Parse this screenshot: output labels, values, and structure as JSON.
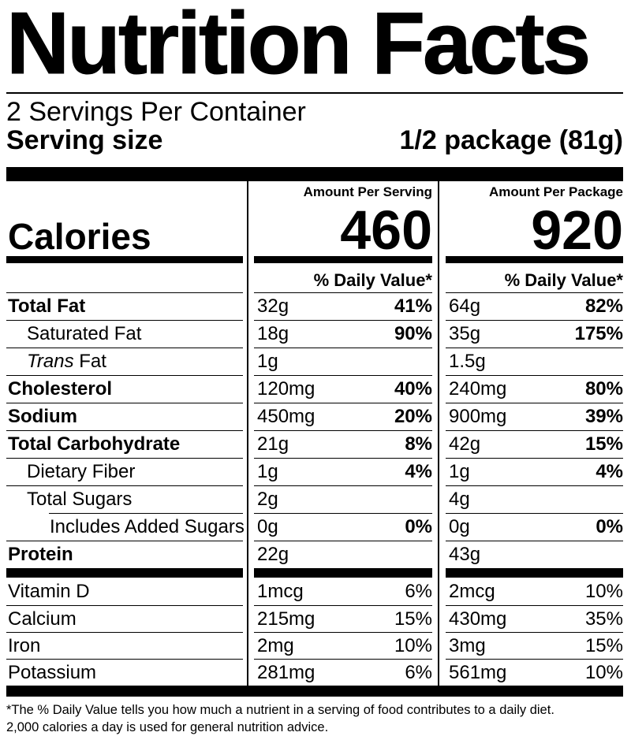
{
  "label": {
    "title": "Nutrition Facts",
    "servings_per_container": "2 Servings Per Container",
    "serving_size_label": "Serving size",
    "serving_size_value": "1/2 package (81g)",
    "columns": {
      "serving_header": "Amount Per Serving",
      "package_header": "Amount Per Package",
      "calories_label": "Calories",
      "serving_calories": "460",
      "package_calories": "920",
      "daily_value_header": "% Daily Value*"
    },
    "nutrients": [
      {
        "name": "Total Fat",
        "bold": true,
        "indent": 0,
        "serving_amount": "32g",
        "serving_dv": "41%",
        "package_amount": "64g",
        "package_dv": "82%",
        "dv_bold": true
      },
      {
        "name": "Saturated Fat",
        "bold": false,
        "indent": 1,
        "serving_amount": "18g",
        "serving_dv": "90%",
        "package_amount": "35g",
        "package_dv": "175%",
        "dv_bold": true
      },
      {
        "name_italic": "Trans",
        "name": " Fat",
        "bold": false,
        "indent": 1,
        "serving_amount": "1g",
        "serving_dv": "",
        "package_amount": "1.5g",
        "package_dv": "",
        "dv_bold": false
      },
      {
        "name": "Cholesterol",
        "bold": true,
        "indent": 0,
        "serving_amount": "120mg",
        "serving_dv": "40%",
        "package_amount": "240mg",
        "package_dv": "80%",
        "dv_bold": true
      },
      {
        "name": "Sodium",
        "bold": true,
        "indent": 0,
        "serving_amount": "450mg",
        "serving_dv": "20%",
        "package_amount": "900mg",
        "package_dv": "39%",
        "dv_bold": true
      },
      {
        "name": "Total Carbohydrate",
        "bold": true,
        "indent": 0,
        "serving_amount": "21g",
        "serving_dv": "8%",
        "package_amount": "42g",
        "package_dv": "15%",
        "dv_bold": true
      },
      {
        "name": "Dietary Fiber",
        "bold": false,
        "indent": 1,
        "serving_amount": "1g",
        "serving_dv": "4%",
        "package_amount": "1g",
        "package_dv": "4%",
        "dv_bold": true
      },
      {
        "name": "Total Sugars",
        "bold": false,
        "indent": 1,
        "serving_amount": "2g",
        "serving_dv": "",
        "package_amount": "4g",
        "package_dv": "",
        "dv_bold": false
      },
      {
        "name": "Includes Added Sugars",
        "bold": false,
        "indent": 2,
        "rule_indented": true,
        "serving_amount": "0g",
        "serving_dv": "0%",
        "package_amount": "0g",
        "package_dv": "0%",
        "dv_bold": true
      },
      {
        "name": "Protein",
        "bold": true,
        "indent": 0,
        "serving_amount": "22g",
        "serving_dv": "",
        "package_amount": "43g",
        "package_dv": "",
        "dv_bold": false
      }
    ],
    "vitamins": [
      {
        "name": "Vitamin D",
        "serving_amount": "1mcg",
        "serving_dv": "6%",
        "package_amount": "2mcg",
        "package_dv": "10%"
      },
      {
        "name": "Calcium",
        "serving_amount": "215mg",
        "serving_dv": "15%",
        "package_amount": "430mg",
        "package_dv": "35%"
      },
      {
        "name": "Iron",
        "serving_amount": "2mg",
        "serving_dv": "10%",
        "package_amount": "3mg",
        "package_dv": "15%"
      },
      {
        "name": "Potassium",
        "serving_amount": "281mg",
        "serving_dv": "6%",
        "package_amount": "561mg",
        "package_dv": "10%"
      }
    ],
    "footnote_line1": "*The % Daily Value tells you how much a nutrient in a serving of food contributes to a daily diet.",
    "footnote_line2": "2,000 calories a day is used for general nutrition advice.",
    "colors": {
      "ink": "#000000",
      "paper": "#ffffff"
    }
  }
}
